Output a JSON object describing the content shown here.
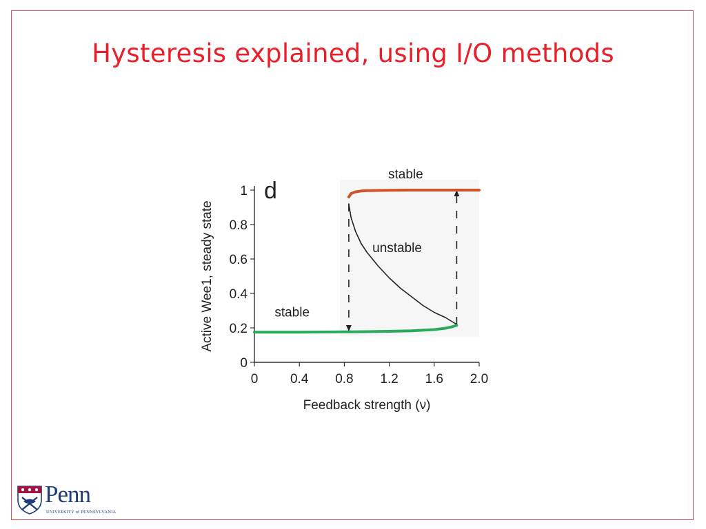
{
  "slide": {
    "title": "Hysteresis explained, using I/O methods"
  },
  "logo": {
    "name": "Penn",
    "subtitle": "UNIVERSITY of PENNSYLVANIA"
  },
  "chart_data": {
    "type": "line",
    "panel_label": "d",
    "xlabel": "Feedback strength (ν)",
    "ylabel": "Active Wee1, steady state",
    "xlim": [
      0,
      2.0
    ],
    "ylim": [
      0,
      1
    ],
    "xticks": [
      "0",
      "0.4",
      "0.8",
      "1.2",
      "1.6",
      "2.0"
    ],
    "yticks": [
      "0",
      "0.2",
      "0.4",
      "0.6",
      "0.8",
      "1"
    ],
    "grid": false,
    "series": [
      {
        "name": "stable",
        "color": "#d0542a",
        "x": [
          0.84,
          0.86,
          0.9,
          0.95,
          1.0,
          1.1,
          1.2,
          1.4,
          1.6,
          1.8,
          2.0
        ],
        "y": [
          0.96,
          0.98,
          0.99,
          0.995,
          0.997,
          0.998,
          0.999,
          1.0,
          1.0,
          1.0,
          1.0
        ]
      },
      {
        "name": "unstable",
        "color": "#222222",
        "x": [
          0.84,
          0.86,
          0.9,
          0.95,
          1.0,
          1.1,
          1.2,
          1.3,
          1.4,
          1.5,
          1.6,
          1.7,
          1.8
        ],
        "y": [
          0.92,
          0.84,
          0.76,
          0.69,
          0.64,
          0.56,
          0.49,
          0.43,
          0.38,
          0.33,
          0.29,
          0.26,
          0.22
        ]
      },
      {
        "name": "stable",
        "color": "#2aaa5c",
        "x": [
          0,
          0.4,
          0.8,
          1.0,
          1.2,
          1.4,
          1.6,
          1.7,
          1.75,
          1.8
        ],
        "y": [
          0.175,
          0.175,
          0.177,
          0.178,
          0.18,
          0.183,
          0.19,
          0.198,
          0.205,
          0.215
        ]
      }
    ],
    "transitions": [
      {
        "x": 0.84,
        "from_y": 0.92,
        "to_y": 0.18,
        "direction": "down",
        "style": "dashed"
      },
      {
        "x": 1.8,
        "from_y": 0.22,
        "to_y": 1.0,
        "direction": "up",
        "style": "dashed"
      }
    ],
    "annotations": [
      {
        "text": "stable",
        "near": "upper branch"
      },
      {
        "text": "unstable",
        "near": "middle branch"
      },
      {
        "text": "stable",
        "near": "lower branch"
      }
    ]
  }
}
